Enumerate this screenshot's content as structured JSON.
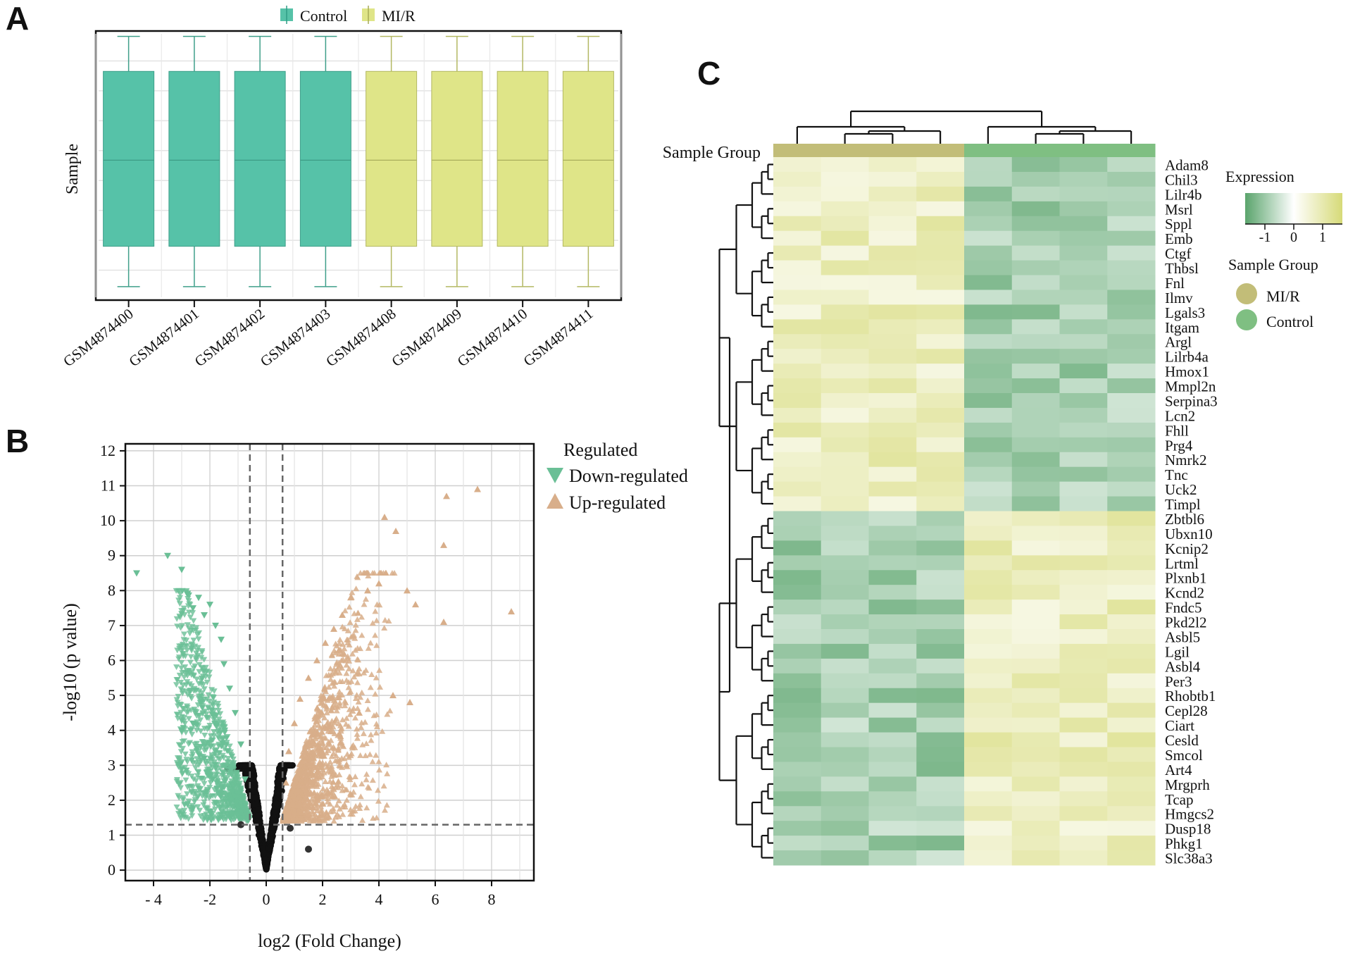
{
  "panels": {
    "a": "A",
    "b": "B",
    "c": "C"
  },
  "colors": {
    "control": "#56c2a8",
    "mir": "#dfe588",
    "down": "#6abf96",
    "up": "#d8ae8a",
    "ns": "#111111"
  },
  "chart_data": [
    {
      "type": "box",
      "panel": "A",
      "legend": [
        "Control",
        "MI/R"
      ],
      "ylabel": "Sample",
      "categories": [
        "GSM4874400",
        "GSM4874401",
        "GSM4874402",
        "GSM4874403",
        "GSM4874408",
        "GSM4874409",
        "GSM4874410",
        "GSM4874411"
      ],
      "groups": [
        "Control",
        "Control",
        "Control",
        "Control",
        "MI/R",
        "MI/R",
        "MI/R",
        "MI/R"
      ],
      "stats": {
        "min": 0.05,
        "q1": 0.2,
        "median": 0.52,
        "q3": 0.85,
        "max": 0.98
      }
    },
    {
      "type": "scatter",
      "panel": "B",
      "xlabel": "log2 (Fold Change)",
      "ylabel": "-log10 (p value)",
      "xlim": [
        -5,
        9.5
      ],
      "ylim": [
        -0.3,
        12.2
      ],
      "xticks": [
        -4,
        -2,
        0,
        2,
        4,
        6,
        8
      ],
      "xtick_labels": [
        "- 4",
        "-2",
        "0",
        "2",
        "4",
        "6",
        "8"
      ],
      "yticks": [
        0,
        1,
        2,
        3,
        4,
        5,
        6,
        7,
        8,
        9,
        10,
        11,
        12
      ],
      "thresholds": {
        "log2fc": [
          -0.58,
          0.58
        ],
        "neg_log10_p": 1.3
      },
      "legend_title": "Regulated",
      "legend": [
        "Down-regulated",
        "Up-regulated"
      ],
      "down_points": [
        [
          -4.6,
          8.5
        ],
        [
          -3.5,
          9.0
        ],
        [
          -3.0,
          8.6
        ],
        [
          -2.8,
          7.9
        ],
        [
          -2.6,
          7.5
        ],
        [
          -2.4,
          7.8
        ],
        [
          -2.2,
          7.3
        ],
        [
          -2.0,
          7.6
        ],
        [
          -1.8,
          7.0
        ],
        [
          -1.6,
          6.6
        ],
        [
          -1.5,
          5.9
        ],
        [
          -1.3,
          5.2
        ],
        [
          -1.1,
          4.5
        ],
        [
          -0.9,
          3.6
        ],
        [
          -0.75,
          2.6
        ],
        [
          -3.0,
          4.0
        ],
        [
          -2.6,
          4.2
        ],
        [
          -2.2,
          3.2
        ],
        [
          -1.9,
          2.6
        ],
        [
          -1.6,
          2.2
        ]
      ],
      "up_points": [
        [
          7.5,
          10.9
        ],
        [
          6.4,
          10.7
        ],
        [
          6.3,
          9.3
        ],
        [
          4.2,
          10.1
        ],
        [
          4.6,
          9.7
        ],
        [
          8.7,
          7.4
        ],
        [
          6.3,
          7.1
        ],
        [
          5.3,
          7.6
        ],
        [
          5.0,
          8.0
        ],
        [
          4.0,
          8.2
        ],
        [
          3.6,
          8.0
        ],
        [
          3.0,
          7.8
        ],
        [
          2.7,
          7.3
        ],
        [
          2.4,
          6.9
        ],
        [
          2.1,
          6.5
        ],
        [
          1.8,
          6.0
        ],
        [
          1.5,
          5.5
        ],
        [
          1.2,
          4.9
        ],
        [
          1.0,
          4.2
        ],
        [
          0.8,
          3.4
        ],
        [
          0.7,
          2.5
        ],
        [
          5.1,
          4.8
        ],
        [
          4.5,
          5.0
        ],
        [
          3.3,
          4.5
        ],
        [
          2.6,
          3.9
        ],
        [
          2.0,
          3.3
        ]
      ],
      "ns_points": [
        [
          1.5,
          0.6
        ],
        [
          -0.9,
          1.3
        ],
        [
          0.85,
          1.2
        ]
      ]
    },
    {
      "type": "heatmap",
      "panel": "C",
      "sample_group_label": "Sample Group",
      "column_groups": [
        "MI/R",
        "MI/R",
        "MI/R",
        "MI/R",
        "Control",
        "Control",
        "Control",
        "Control"
      ],
      "rows": [
        "Adam8",
        "Chil3",
        "Lilr4b",
        "Msrl",
        "Sppl",
        "Emb",
        "Ctgf",
        "Thbsl",
        "Fnl",
        "Ilmv",
        "Lgals3",
        "Itgam",
        "Argl",
        "Lilrb4a",
        "Hmox1",
        "Mmpl2n",
        "Serpina3",
        "Lcn2",
        "Fhll",
        "Prg4",
        "Nmrk2",
        "Tnc",
        "Uck2",
        "Timpl",
        "Zbtbl6",
        "Ubxn10",
        "Kcnip2",
        "Lrtml",
        "Plxnb1",
        "Kcnd2",
        "Fndc5",
        "Pkd2l2",
        "Asbl5",
        "Lgil",
        "Asbl4",
        "Per3",
        "Rhobtb1",
        "Cepl28",
        "Ciart",
        "Cesld",
        "Smcol",
        "Art4",
        "Mrgprh",
        "Tcap",
        "Hmgcs2",
        "Dusp18",
        "Phkg1",
        "Slc38a3"
      ],
      "legend_title": "Expression",
      "scale_ticks": [
        "-1",
        "0",
        "1"
      ],
      "group_legend_title": "Sample Group",
      "group_legend": [
        "MI/R",
        "Control"
      ],
      "group_colors": {
        "MI/R": "#c2bd78",
        "Control": "#7fbf82"
      },
      "color_stops": [
        "#5aa46c",
        "#ffffff",
        "#d6da78"
      ]
    }
  ]
}
